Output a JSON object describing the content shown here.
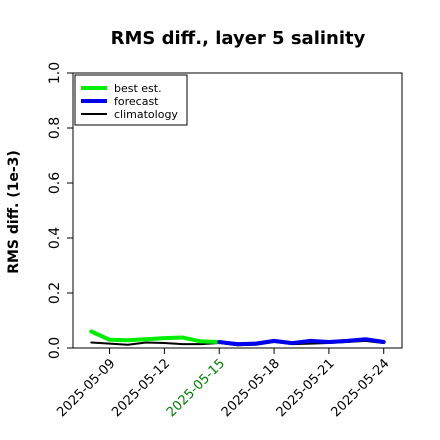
{
  "chart_data": {
    "type": "line",
    "title": "RMS diff., layer 5 salinity",
    "xlabel": "",
    "ylabel": "RMS diff. (1e-3)",
    "ylim": [
      0.0,
      1.0
    ],
    "xlim": [
      "2025-05-07",
      "2025-05-25"
    ],
    "yticks": [
      0.0,
      0.2,
      0.4,
      0.6,
      0.8,
      1.0
    ],
    "ytick_labels": [
      "0.0",
      "0.2",
      "0.4",
      "0.6",
      "0.8",
      "1.0"
    ],
    "xticks": [
      "2025-05-09",
      "2025-05-12",
      "2025-05-15",
      "2025-05-18",
      "2025-05-21",
      "2025-05-24"
    ],
    "xtick_colors": [
      "#000000",
      "#000000",
      "#008000",
      "#000000",
      "#000000",
      "#000000"
    ],
    "grid": false,
    "legend_position": "top-left",
    "series": [
      {
        "name": "best est.",
        "color": "#00ee00",
        "x": [
          "2025-05-08",
          "2025-05-09",
          "2025-05-10",
          "2025-05-11",
          "2025-05-12",
          "2025-05-13",
          "2025-05-14",
          "2025-05-15"
        ],
        "values": [
          0.06,
          0.03,
          0.028,
          0.032,
          0.036,
          0.038,
          0.024,
          0.022
        ]
      },
      {
        "name": "forecast",
        "color": "#0000ee",
        "x": [
          "2025-05-15",
          "2025-05-16",
          "2025-05-17",
          "2025-05-18",
          "2025-05-19",
          "2025-05-20",
          "2025-05-21",
          "2025-05-22",
          "2025-05-23",
          "2025-05-24"
        ],
        "values": [
          0.022,
          0.014,
          0.016,
          0.026,
          0.018,
          0.026,
          0.022,
          0.026,
          0.032,
          0.022
        ]
      },
      {
        "name": "climatology",
        "color": "#000000",
        "x": [
          "2025-05-08",
          "2025-05-09",
          "2025-05-10",
          "2025-05-11",
          "2025-05-12",
          "2025-05-13",
          "2025-05-14",
          "2025-05-15",
          "2025-05-16",
          "2025-05-17",
          "2025-05-18",
          "2025-05-19",
          "2025-05-20",
          "2025-05-21",
          "2025-05-22",
          "2025-05-23",
          "2025-05-24"
        ],
        "values": [
          0.02,
          0.016,
          0.012,
          0.02,
          0.018,
          0.014,
          0.014,
          0.018,
          0.01,
          0.012,
          0.022,
          0.014,
          0.016,
          0.018,
          0.022,
          0.026,
          0.018
        ]
      }
    ]
  }
}
